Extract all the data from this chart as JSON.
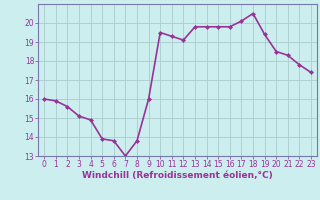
{
  "x_values": [
    0,
    1,
    2,
    3,
    4,
    5,
    6,
    7,
    8,
    9,
    10,
    11,
    12,
    13,
    14,
    15,
    16,
    17,
    18,
    19,
    20,
    21,
    22,
    23
  ],
  "y_values": [
    16.0,
    15.9,
    15.6,
    15.1,
    14.9,
    13.9,
    13.8,
    13.0,
    13.8,
    16.0,
    19.5,
    19.3,
    19.1,
    19.8,
    19.8,
    19.8,
    19.8,
    20.1,
    20.5,
    19.4,
    18.5,
    18.3,
    17.8,
    17.4
  ],
  "line_color": "#993399",
  "marker": "D",
  "marker_size": 2,
  "bg_color": "#cceeee",
  "grid_color": "#aacccc",
  "xlabel": "Windchill (Refroidissement éolien,°C)",
  "xlabel_color": "#993399",
  "tick_color": "#993399",
  "ylim": [
    13,
    21
  ],
  "xlim": [
    -0.5,
    23.5
  ],
  "yticks": [
    13,
    14,
    15,
    16,
    17,
    18,
    19,
    20
  ],
  "xticks": [
    0,
    1,
    2,
    3,
    4,
    5,
    6,
    7,
    8,
    9,
    10,
    11,
    12,
    13,
    14,
    15,
    16,
    17,
    18,
    19,
    20,
    21,
    22,
    23
  ],
  "spine_color": "#7777aa",
  "line_width": 1.2,
  "tick_fontsize": 5.5,
  "xlabel_fontsize": 6.5
}
